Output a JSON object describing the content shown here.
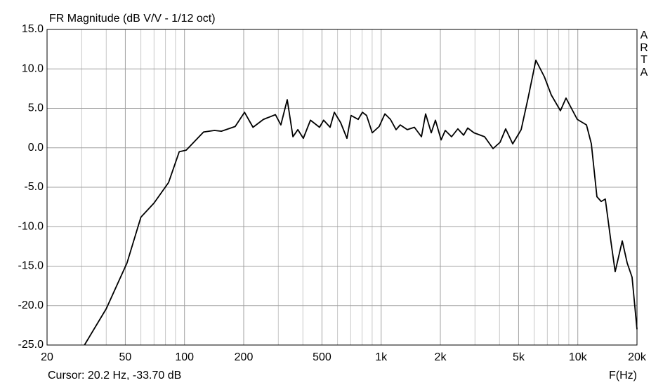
{
  "chart_data": {
    "type": "line",
    "title": "FR Magnitude (dB V/V - 1/12 oct)",
    "xlabel": "F(Hz)",
    "watermark": "ARTA",
    "status": "Cursor: 20.2 Hz, -33.70 dB",
    "xscale": "log",
    "grid": true,
    "xlim": [
      20,
      20000
    ],
    "ylim": [
      -25,
      15
    ],
    "xticks": [
      20,
      50,
      100,
      200,
      500,
      {
        "value": 1000,
        "label": "1k"
      },
      {
        "value": 2000,
        "label": "2k"
      },
      {
        "value": 5000,
        "label": "5k"
      },
      {
        "value": 10000,
        "label": "10k"
      },
      {
        "value": 20000,
        "label": "20k"
      }
    ],
    "xminorticks": [
      30,
      40,
      60,
      70,
      80,
      90,
      300,
      400,
      600,
      700,
      800,
      900,
      3000,
      4000,
      6000,
      7000,
      8000,
      9000
    ],
    "yticks": [
      {
        "value": 15,
        "label": "15.0"
      },
      {
        "value": 10,
        "label": "10.0"
      },
      {
        "value": 5,
        "label": "5.0"
      },
      {
        "value": 0,
        "label": "0.0"
      },
      {
        "value": -5,
        "label": "-5.0"
      },
      {
        "value": -10,
        "label": "-10.0"
      },
      {
        "value": -15,
        "label": "-15.0"
      },
      {
        "value": -20,
        "label": "-20.0"
      },
      {
        "value": -25,
        "label": "-25.0"
      }
    ],
    "series": [
      {
        "color": "#000000",
        "x": [
          31,
          40,
          51,
          60,
          70,
          83,
          94,
          102,
          125,
          142,
          154,
          167,
          181,
          202,
          223,
          252,
          290,
          309,
          333,
          356,
          377,
          402,
          437,
          486,
          510,
          550,
          578,
          622,
          670,
          703,
          764,
          803,
          843,
          901,
          977,
          1045,
          1115,
          1191,
          1250,
          1358,
          1476,
          1603,
          1683,
          1798,
          1888,
          2018,
          2118,
          2281,
          2455,
          2625,
          2756,
          2966,
          3358,
          3707,
          4026,
          4297,
          4667,
          5152,
          5586,
          6120,
          6760,
          7330,
          8160,
          8710,
          9940,
          11070,
          11720,
          12510,
          13150,
          13800,
          14760,
          15490,
          16830,
          17830,
          18880,
          20000
        ],
        "values": [
          -25,
          -20.4,
          -14.6,
          -8.8,
          -7.0,
          -4.4,
          -0.5,
          -0.3,
          2.0,
          2.2,
          2.1,
          2.4,
          2.7,
          4.5,
          2.6,
          3.6,
          4.2,
          2.9,
          6.1,
          1.4,
          2.3,
          1.2,
          3.5,
          2.6,
          3.5,
          2.6,
          4.5,
          3.2,
          1.2,
          4.1,
          3.6,
          4.5,
          4.1,
          1.9,
          2.7,
          4.3,
          3.6,
          2.3,
          2.9,
          2.3,
          2.6,
          1.4,
          4.3,
          1.9,
          3.5,
          1.0,
          2.2,
          1.4,
          2.4,
          1.6,
          2.5,
          1.9,
          1.4,
          -0.1,
          0.7,
          2.4,
          0.5,
          2.3,
          6.3,
          11.1,
          9.0,
          6.7,
          4.7,
          6.3,
          3.6,
          2.9,
          0.5,
          -6.2,
          -6.8,
          -6.5,
          -12.0,
          -15.7,
          -11.8,
          -14.6,
          -16.4,
          -23.0
        ]
      }
    ]
  }
}
